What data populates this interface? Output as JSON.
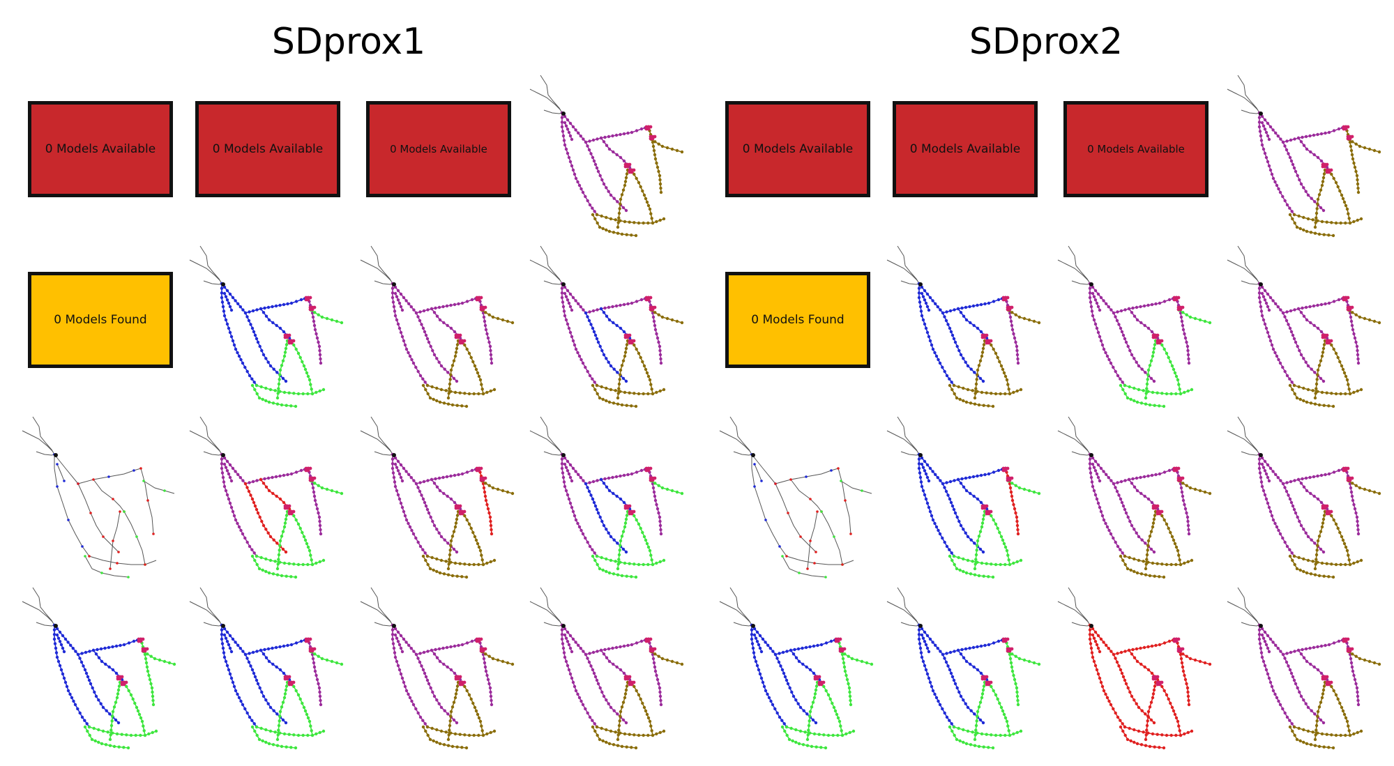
{
  "colors": {
    "red_box": "#C8282C",
    "yellow_box": "#FFC000",
    "blue": "#1f2ad6",
    "purple": "#9b2b9b",
    "magenta": "#d0206a",
    "green": "#3ee63e",
    "olive": "#8a6d0a",
    "red": "#e02020",
    "river": "#555555"
  },
  "panels": [
    {
      "title": "SDprox1",
      "rows": [
        [
          {
            "kind": "box",
            "text": "0 Models Available",
            "color": "red"
          },
          {
            "kind": "box",
            "text": "0 Models Available",
            "color": "red"
          },
          {
            "kind": "box",
            "text": "0 Models Available",
            "color": "red"
          },
          {
            "kind": "map",
            "scheme": "ppoo"
          }
        ],
        [
          {
            "kind": "box",
            "text": "0 Models Found",
            "color": "yellow"
          },
          {
            "kind": "map",
            "scheme": "bbbg"
          },
          {
            "kind": "map",
            "scheme": "ppbo"
          },
          {
            "kind": "map",
            "scheme": "pbpo"
          }
        ],
        [
          {
            "kind": "map",
            "scheme": "sparse"
          },
          {
            "kind": "map",
            "scheme": "prpg"
          },
          {
            "kind": "map",
            "scheme": "ppro"
          },
          {
            "kind": "map",
            "scheme": "pbpg"
          }
        ],
        [
          {
            "kind": "map",
            "scheme": "bbgg"
          },
          {
            "kind": "map",
            "scheme": "bbbg"
          },
          {
            "kind": "map",
            "scheme": "ppbo"
          },
          {
            "kind": "map",
            "scheme": "pppo"
          }
        ]
      ]
    },
    {
      "title": "SDprox2",
      "rows": [
        [
          {
            "kind": "box",
            "text": "0 Models Available",
            "color": "red"
          },
          {
            "kind": "box",
            "text": "0 Models Available",
            "color": "red"
          },
          {
            "kind": "box",
            "text": "0 Models Available",
            "color": "red"
          },
          {
            "kind": "map",
            "scheme": "ppoo"
          }
        ],
        [
          {
            "kind": "box",
            "text": "0 Models Found",
            "color": "yellow"
          },
          {
            "kind": "map",
            "scheme": "bbbo"
          },
          {
            "kind": "map",
            "scheme": "pppg"
          },
          {
            "kind": "map",
            "scheme": "pppo"
          }
        ],
        [
          {
            "kind": "map",
            "scheme": "sparse"
          },
          {
            "kind": "map",
            "scheme": "bbrg"
          },
          {
            "kind": "map",
            "scheme": "ppbo"
          },
          {
            "kind": "map",
            "scheme": "pppo"
          }
        ],
        [
          {
            "kind": "map",
            "scheme": "bbgg"
          },
          {
            "kind": "map",
            "scheme": "bbgg"
          },
          {
            "kind": "map",
            "scheme": "rrrr"
          },
          {
            "kind": "map",
            "scheme": "pppo"
          }
        ]
      ]
    }
  ]
}
